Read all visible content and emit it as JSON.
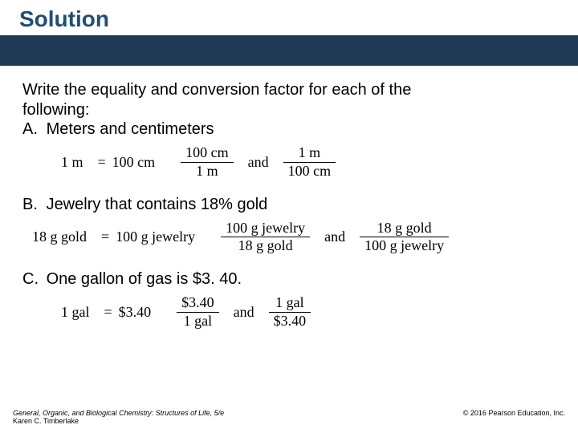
{
  "title": "Solution",
  "prompt_line1": "Write the equality and conversion factor for each of the",
  "prompt_line2": "following:",
  "items": {
    "a": {
      "letter": "A.",
      "text": "Meters and centimeters",
      "lhs": "1 m",
      "eq": "=",
      "rhs": "100 cm",
      "frac1_num": "100 cm",
      "frac1_den": "1 m",
      "and": "and",
      "frac2_num": "1 m",
      "frac2_den": "100 cm"
    },
    "b": {
      "letter": "B.",
      "text": "Jewelry that contains 18% gold",
      "lhs": "18 g gold",
      "eq": "=",
      "rhs": "100 g jewelry",
      "frac1_num": "100 g jewelry",
      "frac1_den": "18 g gold",
      "and": "and",
      "frac2_num": "18 g gold",
      "frac2_den": "100 g jewelry"
    },
    "c": {
      "letter": "C.",
      "text": "One gallon of gas is $3. 40.",
      "lhs": "1 gal",
      "eq": "=",
      "rhs": "$3.40",
      "frac1_num": "$3.40",
      "frac1_den": "1 gal",
      "and": "and",
      "frac2_num": "1 gal",
      "frac2_den": "$3.40"
    }
  },
  "footer": {
    "left_line1": "General, Organic, and Biological Chemistry: Structures of Life, 5/e",
    "left_line2": "Karen C. Timberlake",
    "right": "© 2016 Pearson Education, Inc."
  },
  "colors": {
    "title": "#1f4e79",
    "banner": "#1f3a54",
    "text": "#000000",
    "background": "#ffffff"
  }
}
